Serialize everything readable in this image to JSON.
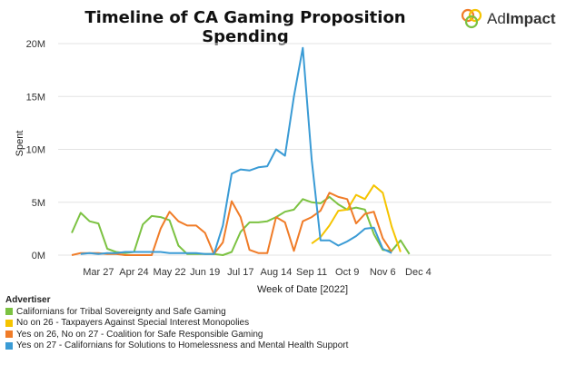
{
  "chart_data": {
    "type": "line",
    "title": "Timeline of CA Gaming Proposition Spending",
    "xlabel": "Week of Date [2022]",
    "ylabel": "Spent",
    "ylim": [
      0,
      20000000
    ],
    "yticks": [
      0,
      5000000,
      10000000,
      15000000,
      20000000
    ],
    "ytick_labels": [
      "0M",
      "5M",
      "10M",
      "15M",
      "20M"
    ],
    "x_tick_labels": [
      "Mar 27",
      "Apr 24",
      "May 22",
      "Jun 19",
      "Jul 17",
      "Aug 14",
      "Sep 11",
      "Oct 9",
      "Nov 6",
      "Dec 4"
    ],
    "x": [
      "Mar 6",
      "Mar 13",
      "Mar 20",
      "Mar 27",
      "Apr 3",
      "Apr 10",
      "Apr 17",
      "Apr 24",
      "May 1",
      "May 8",
      "May 15",
      "May 22",
      "May 29",
      "Jun 5",
      "Jun 12",
      "Jun 19",
      "Jun 26",
      "Jul 3",
      "Jul 10",
      "Jul 17",
      "Jul 24",
      "Jul 31",
      "Aug 7",
      "Aug 14",
      "Aug 21",
      "Aug 28",
      "Sep 4",
      "Sep 11",
      "Sep 18",
      "Sep 25",
      "Oct 2",
      "Oct 9",
      "Oct 16",
      "Oct 23",
      "Oct 30",
      "Nov 6",
      "Nov 13",
      "Nov 20",
      "Nov 27",
      "Dec 4"
    ],
    "legend_title": "Advertiser",
    "legend_position": "bottom-left",
    "grid": "horizontal",
    "series": [
      {
        "name": "Californians for Tribal Sovereignty and Safe Gaming",
        "color": "#7cc242",
        "values": [
          2.1,
          4.0,
          3.2,
          3.0,
          0.6,
          0.3,
          0.2,
          0.3,
          2.9,
          3.7,
          3.6,
          3.3,
          0.9,
          0.1,
          0.1,
          0.1,
          0.1,
          0.0,
          0.3,
          2.2,
          3.1,
          3.1,
          3.2,
          3.6,
          4.1,
          4.3,
          5.3,
          5.0,
          4.9,
          5.5,
          4.8,
          4.3,
          4.5,
          4.3,
          2.0,
          0.5,
          0.4,
          1.4,
          0.1,
          null
        ]
      },
      {
        "name": "No on 26 - Taxpayers Against Special Interest Monopolies",
        "color": "#f5c400",
        "values": [
          null,
          null,
          null,
          null,
          null,
          null,
          null,
          null,
          null,
          null,
          null,
          null,
          null,
          null,
          null,
          null,
          null,
          null,
          null,
          null,
          null,
          null,
          null,
          null,
          null,
          null,
          null,
          1.1,
          1.7,
          2.8,
          4.2,
          4.3,
          5.7,
          5.3,
          6.6,
          5.9,
          2.7,
          0.3,
          null,
          null
        ]
      },
      {
        "name": "Yes on 26, No on 27 - Coalition for Safe Responsible Gaming",
        "color": "#f07c28",
        "values": [
          0.0,
          0.2,
          0.2,
          0.2,
          0.1,
          0.1,
          0.0,
          0.0,
          0.0,
          0.0,
          2.5,
          4.1,
          3.2,
          2.8,
          2.8,
          2.1,
          0.1,
          1.2,
          5.1,
          3.6,
          0.5,
          0.2,
          0.2,
          3.6,
          3.1,
          0.4,
          3.2,
          3.6,
          4.2,
          5.9,
          5.5,
          5.3,
          3.0,
          3.9,
          4.1,
          1.6,
          0.3,
          null,
          null,
          null
        ]
      },
      {
        "name": "Yes on 27 - Californians for Solutions to Homelessness and Mental Health Support",
        "color": "#3a9bd5",
        "values": [
          null,
          0.1,
          0.2,
          0.1,
          0.2,
          0.2,
          0.3,
          0.3,
          0.3,
          0.3,
          0.3,
          0.2,
          0.2,
          0.2,
          0.2,
          0.1,
          0.1,
          2.8,
          7.7,
          8.1,
          8.0,
          8.3,
          8.4,
          10.0,
          9.4,
          15.0,
          19.6,
          9.0,
          1.4,
          1.4,
          0.9,
          1.3,
          1.8,
          2.5,
          2.6,
          0.6,
          0.2,
          null,
          null,
          null
        ]
      }
    ]
  },
  "brand": {
    "logo_label": "AdImpact",
    "name_part1": "Ad",
    "name_part2": "Impact"
  },
  "legend": {
    "title": "Advertiser"
  }
}
